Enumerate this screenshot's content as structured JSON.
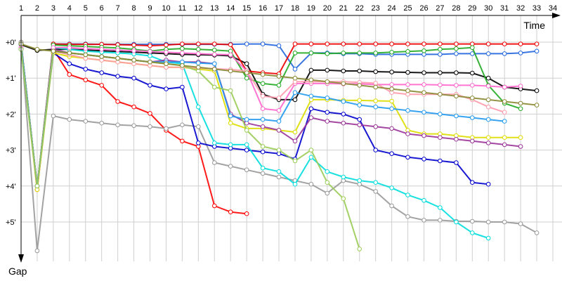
{
  "chart_data": {
    "type": "line",
    "title": "",
    "xlabel": "Time",
    "ylabel": "Gap",
    "xlim": [
      1,
      34
    ],
    "ylim": [
      0,
      6
    ],
    "x_ticks": [
      "1",
      "2",
      "3",
      "4",
      "5",
      "6",
      "7",
      "8",
      "9",
      "10",
      "11",
      "12",
      "13",
      "14",
      "15",
      "16",
      "17",
      "18",
      "19",
      "20",
      "21",
      "22",
      "23",
      "24",
      "25",
      "26",
      "27",
      "28",
      "29",
      "30",
      "31",
      "32",
      "33",
      "34"
    ],
    "y_ticks": [
      "+0'",
      "+1'",
      "+2'",
      "+3'",
      "+4'",
      "+5'"
    ],
    "grid": true,
    "legend": "none",
    "series": [
      {
        "color": "#ff0000",
        "values": [
          0,
          4.1,
          0.2,
          0.9,
          1.05,
          1.2,
          1.65,
          1.8,
          1.98,
          2.45,
          2.75,
          2.9,
          4.55,
          4.72,
          4.77,
          null,
          null,
          null,
          null,
          null,
          null,
          null,
          null,
          null,
          null,
          null,
          null,
          null,
          null,
          null,
          null,
          null,
          null,
          null
        ]
      },
      {
        "color": "#999999",
        "values": [
          0,
          5.8,
          2.05,
          2.15,
          2.2,
          2.25,
          2.3,
          2.32,
          2.35,
          2.4,
          2.3,
          2.35,
          3.35,
          3.45,
          3.55,
          3.65,
          3.75,
          3.85,
          3.95,
          4.2,
          3.85,
          3.95,
          4.15,
          4.55,
          4.85,
          4.95,
          4.95,
          4.98,
          4.98,
          5.0,
          5.0,
          5.05,
          5.3,
          null
        ]
      },
      {
        "color": "#000000",
        "values": [
          0.07,
          0.23,
          0.2,
          0.2,
          0.22,
          0.24,
          0.26,
          0.28,
          0.3,
          0.32,
          0.34,
          0.35,
          0.36,
          0.38,
          0.6,
          1.45,
          1.6,
          1.6,
          0.78,
          0.78,
          0.8,
          0.8,
          0.82,
          0.83,
          0.84,
          0.85,
          0.85,
          0.85,
          0.86,
          1.0,
          1.25,
          1.3,
          1.35,
          null
        ]
      },
      {
        "color": "#0000cc",
        "values": [
          0.05,
          4.0,
          0.3,
          0.6,
          0.75,
          0.85,
          0.95,
          1.0,
          1.2,
          1.3,
          1.25,
          2.8,
          2.9,
          2.95,
          3.0,
          3.05,
          3.1,
          3.25,
          1.85,
          1.95,
          2.0,
          2.15,
          3.0,
          3.1,
          3.2,
          3.25,
          3.3,
          3.35,
          3.9,
          3.95,
          null,
          null,
          null,
          null
        ]
      },
      {
        "color": "#2266dd",
        "values": [
          0.05,
          4.0,
          0.05,
          0.05,
          0.05,
          0.06,
          0.06,
          0.06,
          0.06,
          0.06,
          0.06,
          0.06,
          0.06,
          0.06,
          0.05,
          0.05,
          0.1,
          0.75,
          0.3,
          0.3,
          0.32,
          0.32,
          0.34,
          0.34,
          0.34,
          0.34,
          0.34,
          0.32,
          0.32,
          0.32,
          0.32,
          0.3,
          0.25,
          null
        ]
      },
      {
        "color": "#ee0000",
        "values": [
          0.05,
          4.0,
          0.05,
          0.06,
          0.06,
          0.06,
          0.07,
          0.08,
          0.1,
          0.08,
          0.05,
          0.05,
          0.05,
          0.07,
          0.8,
          0.85,
          0.88,
          0.05,
          0.05,
          0.05,
          0.05,
          0.05,
          0.05,
          0.05,
          0.05,
          0.05,
          0.05,
          0.05,
          0.05,
          0.05,
          0.05,
          0.05,
          0.05,
          null
        ]
      },
      {
        "color": "#22aa22",
        "values": [
          0.05,
          4.0,
          0.08,
          0.1,
          0.12,
          0.14,
          0.16,
          0.2,
          0.25,
          0.2,
          0.18,
          0.2,
          0.22,
          0.25,
          1.0,
          1.15,
          1.2,
          0.3,
          0.3,
          0.32,
          0.3,
          0.3,
          0.3,
          0.28,
          0.26,
          0.24,
          0.2,
          0.18,
          0.15,
          1.2,
          1.7,
          1.85,
          null,
          null
        ]
      },
      {
        "color": "#00dddd",
        "values": [
          0.05,
          4.0,
          0.15,
          0.2,
          0.25,
          0.28,
          0.3,
          0.33,
          0.38,
          0.55,
          0.6,
          1.8,
          2.8,
          2.85,
          2.85,
          3.5,
          3.6,
          3.95,
          3.2,
          3.6,
          3.75,
          3.85,
          3.9,
          4.05,
          4.25,
          4.4,
          4.6,
          5.0,
          5.3,
          5.45,
          null,
          null,
          null,
          null
        ]
      },
      {
        "color": "#dddd00",
        "values": [
          0.2,
          4.1,
          0.3,
          0.4,
          0.45,
          0.5,
          0.55,
          0.6,
          0.65,
          0.7,
          0.7,
          0.75,
          0.8,
          2.25,
          2.4,
          2.4,
          2.45,
          2.5,
          1.6,
          1.6,
          1.62,
          1.62,
          1.63,
          1.64,
          2.45,
          2.55,
          2.55,
          2.6,
          2.65,
          2.65,
          2.65,
          2.65,
          null,
          null
        ]
      },
      {
        "color": "#993399",
        "values": [
          0.15,
          4.0,
          0.2,
          0.3,
          0.35,
          0.4,
          0.45,
          0.5,
          0.55,
          0.5,
          0.55,
          0.55,
          0.6,
          2.0,
          2.25,
          2.35,
          2.45,
          2.75,
          2.1,
          2.2,
          2.25,
          2.3,
          2.35,
          2.4,
          2.55,
          2.6,
          2.65,
          2.7,
          2.75,
          2.8,
          2.85,
          2.9,
          null,
          null
        ]
      },
      {
        "color": "#ff66cc",
        "values": [
          0.15,
          4.0,
          0.15,
          0.15,
          0.18,
          0.2,
          0.22,
          0.24,
          0.26,
          0.28,
          0.3,
          0.32,
          0.34,
          0.35,
          0.8,
          1.85,
          1.9,
          1.15,
          1.15,
          1.15,
          1.16,
          1.16,
          1.18,
          1.18,
          1.18,
          1.18,
          1.19,
          1.2,
          1.2,
          1.22,
          1.25,
          1.22,
          null,
          null
        ]
      },
      {
        "color": "#ff99aa",
        "values": [
          0.2,
          4.0,
          0.25,
          0.35,
          0.45,
          0.5,
          0.55,
          0.6,
          0.65,
          0.7,
          0.7,
          0.72,
          0.74,
          0.76,
          0.8,
          1.5,
          1.55,
          1.1,
          1.1,
          1.1,
          1.1,
          1.12,
          1.14,
          1.4,
          1.45,
          1.45,
          1.45,
          1.45,
          1.6,
          1.8,
          1.95,
          null,
          null,
          null
        ]
      },
      {
        "color": "#2299ee",
        "values": [
          0.2,
          4.0,
          0.25,
          0.3,
          0.35,
          0.4,
          0.45,
          0.5,
          0.55,
          0.55,
          0.55,
          0.58,
          0.6,
          2.05,
          2.15,
          2.15,
          2.2,
          1.4,
          1.5,
          1.55,
          1.65,
          1.75,
          1.8,
          1.85,
          1.9,
          1.95,
          2.0,
          2.05,
          2.1,
          2.15,
          2.2,
          null,
          null,
          null
        ]
      },
      {
        "color": "#99cc55",
        "values": [
          0.2,
          4.0,
          0.25,
          0.3,
          0.35,
          0.4,
          0.45,
          0.5,
          0.55,
          0.6,
          0.65,
          0.8,
          1.25,
          1.35,
          2.45,
          2.9,
          3.0,
          3.3,
          3.0,
          3.9,
          4.35,
          5.75,
          null,
          null,
          null,
          null,
          null,
          null,
          null,
          null,
          null,
          null,
          null,
          null
        ]
      },
      {
        "color": "#888833",
        "values": [
          0.05,
          0.2,
          0.25,
          0.3,
          0.35,
          0.4,
          0.45,
          0.5,
          0.55,
          0.6,
          0.65,
          0.7,
          0.75,
          0.8,
          0.85,
          0.9,
          0.95,
          1.0,
          1.05,
          1.1,
          1.15,
          1.2,
          1.25,
          1.3,
          1.35,
          1.4,
          1.45,
          1.5,
          1.55,
          1.6,
          1.65,
          1.7,
          1.75,
          null
        ]
      }
    ]
  }
}
